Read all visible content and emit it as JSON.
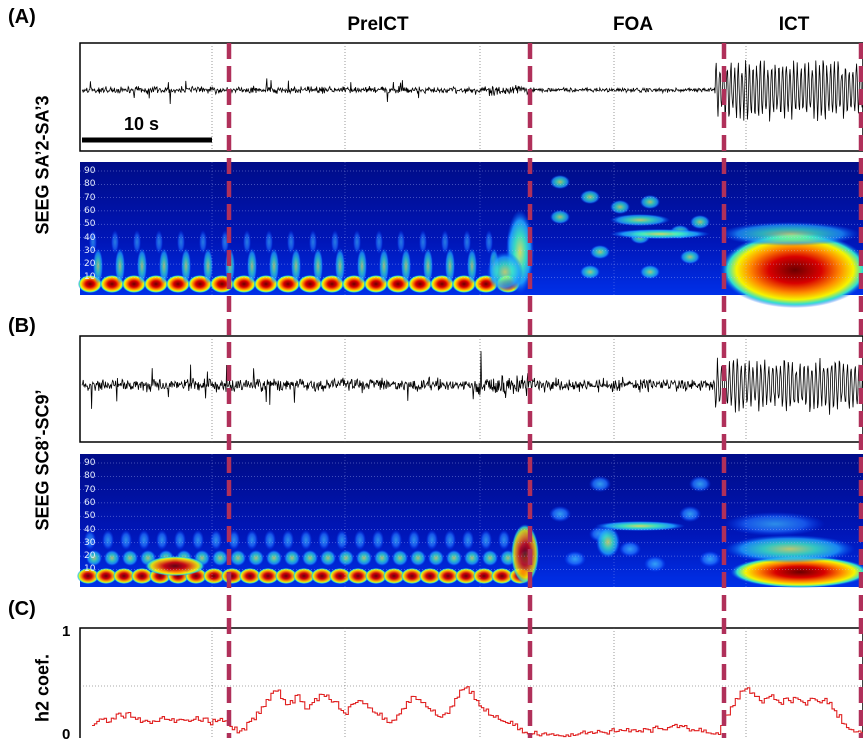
{
  "panels": {
    "a": "(A)",
    "b": "(B)",
    "c": "(C)"
  },
  "phases": [
    {
      "label": "PreICT"
    },
    {
      "label": "FOA"
    },
    {
      "label": "ICT"
    }
  ],
  "channels": [
    {
      "label": "SEEG SA’2-SA’3"
    },
    {
      "label": "SEEG SC8’-SC9’"
    }
  ],
  "scale_bar": {
    "label": "10 s"
  },
  "colors": {
    "phase_marker": "#b0305a",
    "h2_line": "#e02020",
    "eeg": "#000000"
  },
  "chart_data": [
    {
      "type": "line",
      "panel": "A",
      "title": "",
      "series": [
        {
          "name": "",
          "trace": "SEEG time series"
        }
      ]
    },
    {
      "type": "heatmap",
      "panel": "A",
      "yticks": [
        "90",
        "80",
        "70",
        "60",
        "50",
        "40",
        "30",
        "20",
        "10"
      ],
      "colormap": "jet"
    },
    {
      "type": "line",
      "panel": "B",
      "title": "",
      "series": [
        {
          "name": "",
          "trace": "SEEG time series"
        }
      ]
    },
    {
      "type": "heatmap",
      "panel": "B",
      "yticks": [
        "90",
        "80",
        "70",
        "60",
        "50",
        "40",
        "30",
        "20",
        "10"
      ],
      "colormap": "jet"
    },
    {
      "type": "line",
      "panel": "C",
      "ylabel": "h2 coef.",
      "ylim": [
        0,
        1
      ],
      "yticks": [
        "1",
        "0"
      ],
      "grid": true,
      "x": [
        0,
        1,
        2,
        3,
        4,
        5,
        6,
        7,
        8,
        9,
        10,
        11,
        12,
        13,
        14,
        15,
        16,
        17,
        18,
        19,
        20,
        21,
        22,
        23,
        24,
        25,
        26,
        27,
        28,
        29,
        30,
        31,
        32,
        33,
        34,
        35,
        36,
        37,
        38,
        39,
        40,
        41,
        42,
        43,
        44,
        45,
        46,
        47,
        48,
        49,
        50,
        51,
        52,
        53,
        54,
        55,
        56,
        57,
        58,
        59,
        60,
        61,
        62,
        63,
        64,
        65,
        66,
        67,
        68,
        69,
        70,
        71,
        72,
        73,
        74,
        75,
        76,
        77,
        78,
        79,
        80,
        81,
        82,
        83,
        84,
        85,
        86,
        87,
        88,
        89,
        90,
        91,
        92,
        93,
        94,
        95,
        96,
        97,
        98,
        99,
        100,
        101,
        102,
        103,
        104,
        105,
        106,
        107,
        108,
        109,
        110,
        111,
        112,
        113,
        114,
        115,
        116,
        117,
        118,
        119,
        120,
        121,
        122,
        123,
        124,
        125,
        126,
        127,
        128,
        129,
        130,
        131,
        132,
        133,
        134,
        135,
        136,
        137,
        138,
        139,
        140,
        141,
        142,
        143,
        144,
        145,
        146,
        147,
        148,
        149,
        150,
        151,
        152,
        153,
        154,
        155,
        156,
        157,
        158,
        159
      ],
      "series": [
        {
          "name": "",
          "values": [
            0.12,
            0.16,
            0.18,
            0.15,
            0.19,
            0.23,
            0.21,
            0.24,
            0.2,
            0.18,
            0.15,
            0.17,
            0.14,
            0.16,
            0.19,
            0.18,
            0.17,
            0.15,
            0.18,
            0.17,
            0.16,
            0.18,
            0.17,
            0.19,
            0.15,
            0.18,
            0.17,
            0.16,
            0.13,
            0.08,
            0.05,
            0.09,
            0.15,
            0.19,
            0.25,
            0.3,
            0.37,
            0.43,
            0.45,
            0.38,
            0.32,
            0.36,
            0.41,
            0.35,
            0.28,
            0.32,
            0.38,
            0.42,
            0.4,
            0.37,
            0.35,
            0.28,
            0.24,
            0.3,
            0.33,
            0.36,
            0.33,
            0.29,
            0.25,
            0.22,
            0.18,
            0.15,
            0.17,
            0.22,
            0.28,
            0.35,
            0.4,
            0.37,
            0.34,
            0.3,
            0.26,
            0.22,
            0.2,
            0.24,
            0.3,
            0.38,
            0.46,
            0.48,
            0.43,
            0.37,
            0.31,
            0.26,
            0.22,
            0.2,
            0.18,
            0.16,
            0.14,
            0.12,
            0.08,
            0.05,
            0.04,
            0.04,
            0.03,
            0.04,
            0.03,
            0.04,
            0.03,
            0.02,
            0.03,
            0.04,
            0.03,
            0.05,
            0.04,
            0.06,
            0.05,
            0.06,
            0.05,
            0.07,
            0.06,
            0.08,
            0.07,
            0.06,
            0.08,
            0.07,
            0.09,
            0.08,
            0.1,
            0.09,
            0.08,
            0.1,
            0.12,
            0.1,
            0.11,
            0.09,
            0.08,
            0.07,
            0.06,
            0.05,
            0.04,
            0.05,
            0.12,
            0.22,
            0.3,
            0.38,
            0.45,
            0.47,
            0.43,
            0.4,
            0.36,
            0.38,
            0.4,
            0.37,
            0.34,
            0.38,
            0.36,
            0.39,
            0.37,
            0.34,
            0.36,
            0.38,
            0.35,
            0.36,
            0.33,
            0.28,
            0.2,
            0.14,
            0.1,
            0.08,
            0.06,
            0.05
          ]
        }
      ]
    }
  ]
}
